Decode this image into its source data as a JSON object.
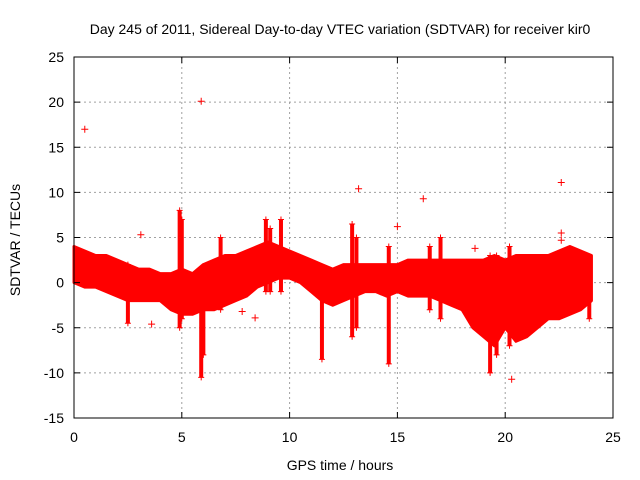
{
  "chart_data": {
    "type": "scatter",
    "title": "Day 245 of 2011, Sidereal Day-to-day VTEC variation (SDTVAR) for receiver kir0",
    "xlabel": "GPS time / hours",
    "ylabel": "SDTVAR / TECUs",
    "xlim": [
      0,
      25
    ],
    "ylim": [
      -15,
      25
    ],
    "xticks": [
      "0",
      "5",
      "10",
      "15",
      "20",
      "25"
    ],
    "yticks": [
      "25",
      "20",
      "15",
      "10",
      "5",
      "0",
      "-5",
      "-10",
      "-15"
    ],
    "grid": true,
    "marker": "+",
    "color": "#ff0000",
    "band": {
      "x": [
        0,
        0.5,
        1,
        1.5,
        2,
        2.5,
        3,
        3.5,
        4,
        4.5,
        5,
        5.5,
        6,
        6.5,
        7,
        7.5,
        8,
        8.5,
        9,
        9.5,
        10,
        10.5,
        11,
        11.5,
        12,
        12.5,
        13,
        13.5,
        14,
        14.5,
        15,
        15.5,
        16,
        16.5,
        17,
        17.5,
        18,
        18.5,
        19,
        19.5,
        20,
        20.5,
        21,
        21.5,
        22,
        22.5,
        23,
        23.5,
        24
      ],
      "upper": [
        4,
        3.5,
        3,
        3,
        2.5,
        2,
        1.5,
        1.5,
        1,
        1,
        1.5,
        1,
        2,
        2.5,
        3,
        3,
        3.5,
        4,
        4.5,
        4,
        3.5,
        3,
        2.5,
        2,
        1.5,
        2,
        2,
        2,
        2,
        2,
        2,
        2.5,
        2.5,
        2.5,
        2.5,
        2.5,
        2.5,
        2.5,
        2.5,
        3,
        2.5,
        3,
        3,
        3,
        3,
        3.5,
        4,
        3.5,
        3
      ],
      "lower": [
        0,
        -0.5,
        -0.5,
        -1,
        -1.5,
        -2,
        -2,
        -2,
        -2,
        -3,
        -3.5,
        -3.5,
        -3,
        -3,
        -2.5,
        -2,
        -1.5,
        -0.5,
        0,
        0.5,
        0.5,
        0,
        -1,
        -2,
        -2.5,
        -2,
        -1.5,
        -1,
        -1,
        -1.5,
        -1,
        -1.5,
        -1.5,
        -1.5,
        -2,
        -2.5,
        -3,
        -5,
        -6,
        -7,
        -5,
        -6.5,
        -6,
        -5,
        -4,
        -4,
        -3.5,
        -3,
        -2
      ]
    },
    "spikes": [
      {
        "x": 2.5,
        "min": -4.5,
        "max": 2
      },
      {
        "x": 4.9,
        "min": -5,
        "max": 8
      },
      {
        "x": 5.0,
        "min": -4,
        "max": 7
      },
      {
        "x": 5.9,
        "min": -10.5,
        "max": 1
      },
      {
        "x": 6.0,
        "min": -8,
        "max": 0.5
      },
      {
        "x": 6.8,
        "min": -3,
        "max": 5
      },
      {
        "x": 8.9,
        "min": -1,
        "max": 7
      },
      {
        "x": 9.1,
        "min": -1,
        "max": 6
      },
      {
        "x": 9.6,
        "min": -1,
        "max": 7
      },
      {
        "x": 11.5,
        "min": -8.5,
        "max": 1
      },
      {
        "x": 12.9,
        "min": -6,
        "max": 6.5
      },
      {
        "x": 13.1,
        "min": -5,
        "max": 5
      },
      {
        "x": 14.6,
        "min": -9,
        "max": 4
      },
      {
        "x": 16.5,
        "min": -3,
        "max": 4
      },
      {
        "x": 17.0,
        "min": -4,
        "max": 5
      },
      {
        "x": 19.3,
        "min": -10,
        "max": 3
      },
      {
        "x": 19.6,
        "min": -8,
        "max": 3
      },
      {
        "x": 20.2,
        "min": -7,
        "max": 4
      },
      {
        "x": 23.9,
        "min": -4,
        "max": 2
      }
    ],
    "outliers": [
      {
        "x": 0.5,
        "y": 17
      },
      {
        "x": 5.9,
        "y": 20.1
      },
      {
        "x": 3.1,
        "y": 5.3
      },
      {
        "x": 3.6,
        "y": -4.6
      },
      {
        "x": 13.2,
        "y": 10.4
      },
      {
        "x": 15.0,
        "y": 6.2
      },
      {
        "x": 16.2,
        "y": 9.3
      },
      {
        "x": 18.6,
        "y": 3.8
      },
      {
        "x": 20.3,
        "y": -10.7
      },
      {
        "x": 22.6,
        "y": 11.1
      },
      {
        "x": 22.6,
        "y": 5.5
      },
      {
        "x": 22.6,
        "y": 4.7
      },
      {
        "x": 7.8,
        "y": -3.2
      },
      {
        "x": 8.4,
        "y": -3.9
      }
    ]
  }
}
